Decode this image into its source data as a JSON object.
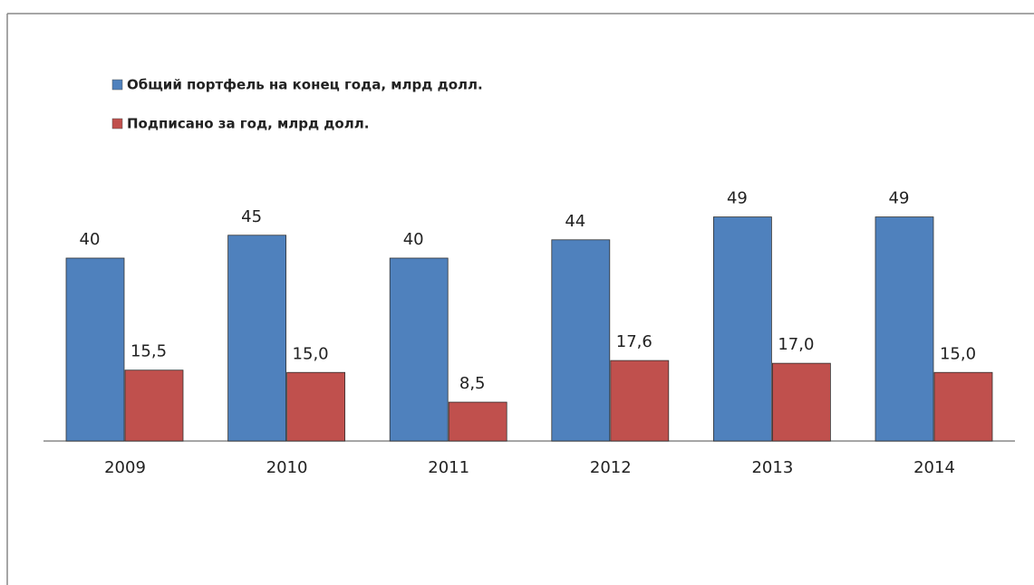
{
  "chart_data": {
    "type": "bar",
    "categories": [
      "2009",
      "2010",
      "2011",
      "2012",
      "2013",
      "2014"
    ],
    "series": [
      {
        "name": "Общий портфель на конец года, млрд долл.",
        "color": "#4f81bd",
        "values": [
          40,
          45,
          40,
          44,
          49,
          49
        ]
      },
      {
        "name": "Подписано за год, млрд долл.",
        "color": "#c0504d",
        "values": [
          15.5,
          15.0,
          8.5,
          17.6,
          17.0,
          15.0
        ],
        "value_labels": [
          "15,5",
          "15,0",
          "8,5",
          "17,6",
          "17,0",
          "15,0"
        ]
      }
    ],
    "legend": "top-left"
  }
}
